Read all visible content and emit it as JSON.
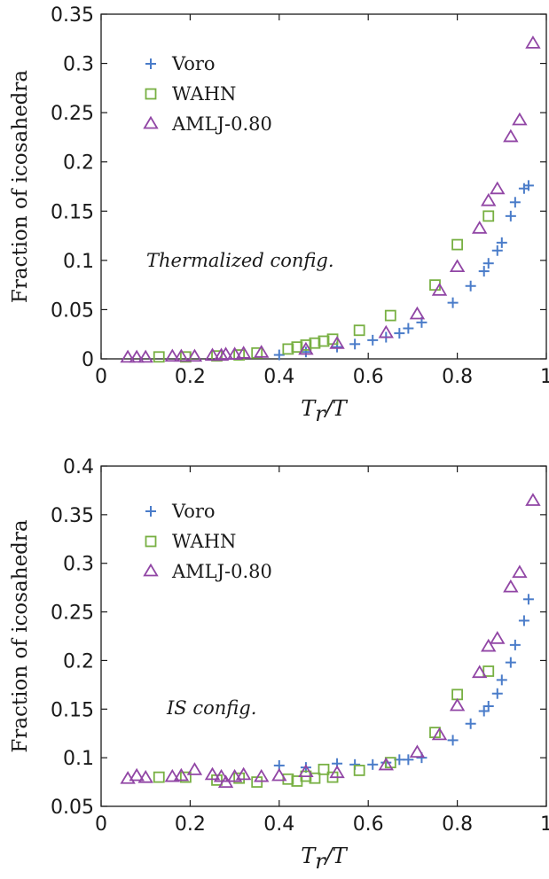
{
  "chart_data": [
    {
      "type": "scatter",
      "annotation": "Thermalized config.",
      "xlabel_base": "T",
      "xlabel_sub": "r",
      "xlabel_denominator": "/T",
      "ylabel": "Fraction of icosahedra",
      "xlim": [
        0,
        1
      ],
      "ylim": [
        0,
        0.35
      ],
      "x_ticks": [
        0,
        0.2,
        0.4,
        0.6,
        0.8,
        1
      ],
      "x_tick_labels": [
        "0",
        "0.2",
        "0.4",
        "0.6",
        "0.8",
        "1"
      ],
      "y_ticks": [
        0,
        0.05,
        0.1,
        0.15,
        0.2,
        0.25,
        0.3,
        0.35
      ],
      "y_tick_labels": [
        "0",
        "0.05",
        "0.1",
        "0.15",
        "0.2",
        "0.25",
        "0.3",
        "0.35"
      ],
      "grid": false,
      "legend_position": "top-left",
      "series": [
        {
          "name": "Voro",
          "marker": "plus",
          "color": "#4a7cc9",
          "points": [
            [
              0.4,
              0.004
            ],
            [
              0.46,
              0.007
            ],
            [
              0.53,
              0.012
            ],
            [
              0.57,
              0.015
            ],
            [
              0.61,
              0.019
            ],
            [
              0.64,
              0.022
            ],
            [
              0.67,
              0.026
            ],
            [
              0.69,
              0.031
            ],
            [
              0.72,
              0.037
            ],
            [
              0.79,
              0.057
            ],
            [
              0.83,
              0.074
            ],
            [
              0.86,
              0.089
            ],
            [
              0.87,
              0.097
            ],
            [
              0.89,
              0.11
            ],
            [
              0.9,
              0.118
            ],
            [
              0.92,
              0.145
            ],
            [
              0.93,
              0.159
            ],
            [
              0.95,
              0.173
            ],
            [
              0.96,
              0.176
            ]
          ]
        },
        {
          "name": "WAHN",
          "marker": "square",
          "color": "#78b043",
          "points": [
            [
              0.13,
              0.002
            ],
            [
              0.19,
              0.002
            ],
            [
              0.26,
              0.003
            ],
            [
              0.31,
              0.004
            ],
            [
              0.35,
              0.006
            ],
            [
              0.42,
              0.01
            ],
            [
              0.44,
              0.012
            ],
            [
              0.46,
              0.014
            ],
            [
              0.48,
              0.016
            ],
            [
              0.5,
              0.018
            ],
            [
              0.52,
              0.02
            ],
            [
              0.58,
              0.029
            ],
            [
              0.65,
              0.044
            ],
            [
              0.75,
              0.075
            ],
            [
              0.8,
              0.116
            ],
            [
              0.87,
              0.145
            ]
          ]
        },
        {
          "name": "AMLJ-0.80",
          "marker": "triangle",
          "color": "#9146a5",
          "points": [
            [
              0.06,
              0.001
            ],
            [
              0.08,
              0.001
            ],
            [
              0.1,
              0.001
            ],
            [
              0.16,
              0.002
            ],
            [
              0.18,
              0.002
            ],
            [
              0.21,
              0.002
            ],
            [
              0.25,
              0.003
            ],
            [
              0.27,
              0.003
            ],
            [
              0.28,
              0.004
            ],
            [
              0.3,
              0.004
            ],
            [
              0.32,
              0.005
            ],
            [
              0.36,
              0.006
            ],
            [
              0.46,
              0.009
            ],
            [
              0.53,
              0.015
            ],
            [
              0.64,
              0.026
            ],
            [
              0.71,
              0.045
            ],
            [
              0.76,
              0.069
            ],
            [
              0.8,
              0.093
            ],
            [
              0.85,
              0.132
            ],
            [
              0.87,
              0.16
            ],
            [
              0.89,
              0.172
            ],
            [
              0.92,
              0.225
            ],
            [
              0.94,
              0.242
            ],
            [
              0.97,
              0.32
            ]
          ]
        }
      ]
    },
    {
      "type": "scatter",
      "annotation": "IS config.",
      "xlabel_base": "T",
      "xlabel_sub": "r",
      "xlabel_denominator": "/T",
      "ylabel": "Fraction of icosahedra",
      "xlim": [
        0,
        1
      ],
      "ylim": [
        0.05,
        0.4
      ],
      "x_ticks": [
        0,
        0.2,
        0.4,
        0.6,
        0.8,
        1
      ],
      "x_tick_labels": [
        "0",
        "0.2",
        "0.4",
        "0.6",
        "0.8",
        "1"
      ],
      "y_ticks": [
        0.05,
        0.1,
        0.15,
        0.2,
        0.25,
        0.3,
        0.35,
        0.4
      ],
      "y_tick_labels": [
        "0.05",
        "0.1",
        "0.15",
        "0.2",
        "0.25",
        "0.3",
        "0.35",
        "0.4"
      ],
      "grid": false,
      "legend_position": "top-left",
      "series": [
        {
          "name": "Voro",
          "marker": "plus",
          "color": "#4a7cc9",
          "points": [
            [
              0.4,
              0.092
            ],
            [
              0.46,
              0.09
            ],
            [
              0.53,
              0.094
            ],
            [
              0.57,
              0.093
            ],
            [
              0.61,
              0.093
            ],
            [
              0.64,
              0.095
            ],
            [
              0.67,
              0.098
            ],
            [
              0.69,
              0.098
            ],
            [
              0.72,
              0.1
            ],
            [
              0.79,
              0.118
            ],
            [
              0.83,
              0.135
            ],
            [
              0.86,
              0.148
            ],
            [
              0.87,
              0.153
            ],
            [
              0.89,
              0.166
            ],
            [
              0.9,
              0.18
            ],
            [
              0.92,
              0.198
            ],
            [
              0.93,
              0.216
            ],
            [
              0.95,
              0.241
            ],
            [
              0.96,
              0.263
            ]
          ]
        },
        {
          "name": "WAHN",
          "marker": "square",
          "color": "#78b043",
          "points": [
            [
              0.13,
              0.08
            ],
            [
              0.19,
              0.08
            ],
            [
              0.26,
              0.077
            ],
            [
              0.31,
              0.079
            ],
            [
              0.35,
              0.075
            ],
            [
              0.42,
              0.078
            ],
            [
              0.44,
              0.076
            ],
            [
              0.46,
              0.081
            ],
            [
              0.48,
              0.079
            ],
            [
              0.5,
              0.088
            ],
            [
              0.52,
              0.08
            ],
            [
              0.58,
              0.087
            ],
            [
              0.65,
              0.095
            ],
            [
              0.75,
              0.126
            ],
            [
              0.8,
              0.165
            ],
            [
              0.87,
              0.189
            ]
          ]
        },
        {
          "name": "AMLJ-0.80",
          "marker": "triangle",
          "color": "#9146a5",
          "points": [
            [
              0.06,
              0.078
            ],
            [
              0.08,
              0.081
            ],
            [
              0.1,
              0.079
            ],
            [
              0.16,
              0.08
            ],
            [
              0.18,
              0.081
            ],
            [
              0.21,
              0.087
            ],
            [
              0.25,
              0.082
            ],
            [
              0.27,
              0.08
            ],
            [
              0.28,
              0.074
            ],
            [
              0.3,
              0.08
            ],
            [
              0.32,
              0.082
            ],
            [
              0.36,
              0.08
            ],
            [
              0.4,
              0.081
            ],
            [
              0.46,
              0.085
            ],
            [
              0.53,
              0.084
            ],
            [
              0.64,
              0.092
            ],
            [
              0.71,
              0.105
            ],
            [
              0.76,
              0.123
            ],
            [
              0.8,
              0.153
            ],
            [
              0.85,
              0.187
            ],
            [
              0.87,
              0.214
            ],
            [
              0.89,
              0.222
            ],
            [
              0.92,
              0.275
            ],
            [
              0.94,
              0.29
            ],
            [
              0.97,
              0.364
            ]
          ]
        }
      ]
    }
  ]
}
